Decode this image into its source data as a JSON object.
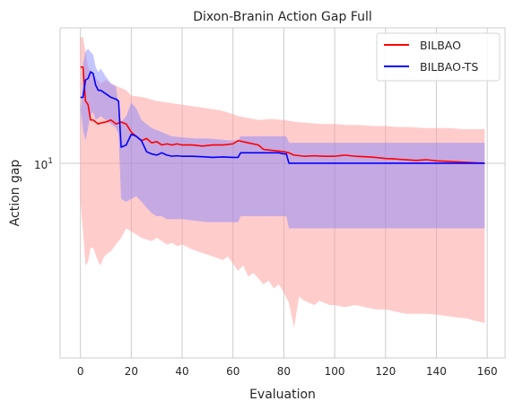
{
  "chart_data": {
    "type": "line",
    "title": "Dixon-Branin Action Gap Full",
    "xlabel": "Evaluation",
    "ylabel": "Action gap",
    "xlim": [
      -8,
      167
    ],
    "ylim": [
      4.4,
      17.7
    ],
    "yscale": "log",
    "grid": true,
    "legend_position": "top-right",
    "x_ticks": [
      0,
      20,
      40,
      60,
      80,
      100,
      120,
      140,
      160
    ],
    "y_ticks": [
      {
        "value": 10,
        "base": "10",
        "exp": "1"
      }
    ],
    "series": [
      {
        "name": "BILBAO",
        "color": "#ff0000",
        "band_color": "#ff9999",
        "points": [
          [
            0,
            15.0
          ],
          [
            1,
            15.0
          ],
          [
            2,
            13.0
          ],
          [
            3,
            12.8
          ],
          [
            4,
            12.0
          ],
          [
            5,
            12.0
          ],
          [
            6,
            11.9
          ],
          [
            7,
            11.8
          ],
          [
            8,
            11.85
          ],
          [
            10,
            11.9
          ],
          [
            12,
            12.0
          ],
          [
            14,
            11.8
          ],
          [
            16,
            11.9
          ],
          [
            18,
            11.8
          ],
          [
            20,
            11.4
          ],
          [
            22,
            11.2
          ],
          [
            24,
            11.0
          ],
          [
            26,
            11.1
          ],
          [
            28,
            10.9
          ],
          [
            30,
            10.95
          ],
          [
            32,
            10.8
          ],
          [
            34,
            10.85
          ],
          [
            36,
            10.8
          ],
          [
            38,
            10.85
          ],
          [
            40,
            10.8
          ],
          [
            44,
            10.8
          ],
          [
            48,
            10.75
          ],
          [
            52,
            10.8
          ],
          [
            56,
            10.8
          ],
          [
            60,
            10.85
          ],
          [
            62,
            11.0
          ],
          [
            66,
            10.9
          ],
          [
            70,
            10.8
          ],
          [
            72,
            10.6
          ],
          [
            76,
            10.55
          ],
          [
            80,
            10.5
          ],
          [
            82,
            10.45
          ],
          [
            84,
            10.35
          ],
          [
            88,
            10.3
          ],
          [
            92,
            10.32
          ],
          [
            96,
            10.3
          ],
          [
            100,
            10.3
          ],
          [
            104,
            10.35
          ],
          [
            108,
            10.3
          ],
          [
            112,
            10.28
          ],
          [
            116,
            10.25
          ],
          [
            120,
            10.2
          ],
          [
            124,
            10.18
          ],
          [
            128,
            10.15
          ],
          [
            132,
            10.12
          ],
          [
            136,
            10.15
          ],
          [
            140,
            10.1
          ],
          [
            144,
            10.08
          ],
          [
            150,
            10.05
          ],
          [
            155,
            10.02
          ],
          [
            159,
            10.0
          ]
        ],
        "band_upper": [
          [
            0,
            17.0
          ],
          [
            1,
            17.0
          ],
          [
            2,
            16.0
          ],
          [
            3,
            15.0
          ],
          [
            5,
            14.5
          ],
          [
            8,
            14.0
          ],
          [
            10,
            14.2
          ],
          [
            12,
            14.0
          ],
          [
            15,
            13.8
          ],
          [
            18,
            13.6
          ],
          [
            20,
            13.3
          ],
          [
            25,
            13.2
          ],
          [
            30,
            13.0
          ],
          [
            35,
            12.9
          ],
          [
            40,
            12.8
          ],
          [
            45,
            12.7
          ],
          [
            50,
            12.6
          ],
          [
            55,
            12.5
          ],
          [
            60,
            12.3
          ],
          [
            62,
            12.2
          ],
          [
            66,
            12.1
          ],
          [
            70,
            12.0
          ],
          [
            75,
            12.05
          ],
          [
            80,
            12.0
          ],
          [
            85,
            11.9
          ],
          [
            90,
            11.85
          ],
          [
            95,
            11.8
          ],
          [
            100,
            11.8
          ],
          [
            105,
            11.75
          ],
          [
            110,
            11.75
          ],
          [
            115,
            11.7
          ],
          [
            120,
            11.7
          ],
          [
            125,
            11.65
          ],
          [
            130,
            11.65
          ],
          [
            135,
            11.6
          ],
          [
            140,
            11.6
          ],
          [
            145,
            11.6
          ],
          [
            150,
            11.55
          ],
          [
            155,
            11.55
          ],
          [
            159,
            11.55
          ]
        ],
        "band_lower": [
          [
            0,
            8.5
          ],
          [
            1,
            7.5
          ],
          [
            2,
            6.5
          ],
          [
            3,
            6.6
          ],
          [
            4,
            7.0
          ],
          [
            5,
            7.0
          ],
          [
            6,
            6.8
          ],
          [
            7,
            6.6
          ],
          [
            8,
            6.5
          ],
          [
            9,
            6.7
          ],
          [
            10,
            6.8
          ],
          [
            12,
            6.9
          ],
          [
            14,
            7.1
          ],
          [
            16,
            7.3
          ],
          [
            18,
            7.6
          ],
          [
            20,
            7.5
          ],
          [
            24,
            7.3
          ],
          [
            28,
            7.2
          ],
          [
            30,
            7.3
          ],
          [
            34,
            7.1
          ],
          [
            36,
            7.15
          ],
          [
            38,
            7.05
          ],
          [
            40,
            7.1
          ],
          [
            44,
            6.95
          ],
          [
            48,
            6.85
          ],
          [
            52,
            6.75
          ],
          [
            56,
            6.65
          ],
          [
            58,
            6.75
          ],
          [
            60,
            6.55
          ],
          [
            62,
            6.35
          ],
          [
            64,
            6.5
          ],
          [
            66,
            6.2
          ],
          [
            68,
            6.3
          ],
          [
            70,
            6.15
          ],
          [
            72,
            6.0
          ],
          [
            74,
            6.1
          ],
          [
            76,
            5.9
          ],
          [
            78,
            6.0
          ],
          [
            80,
            5.8
          ],
          [
            82,
            5.55
          ],
          [
            84,
            5.0
          ],
          [
            86,
            5.7
          ],
          [
            88,
            5.6
          ],
          [
            90,
            5.55
          ],
          [
            92,
            5.5
          ],
          [
            94,
            5.6
          ],
          [
            96,
            5.55
          ],
          [
            98,
            5.5
          ],
          [
            100,
            5.5
          ],
          [
            104,
            5.45
          ],
          [
            108,
            5.5
          ],
          [
            112,
            5.45
          ],
          [
            116,
            5.4
          ],
          [
            120,
            5.4
          ],
          [
            124,
            5.35
          ],
          [
            128,
            5.3
          ],
          [
            132,
            5.3
          ],
          [
            136,
            5.3
          ],
          [
            140,
            5.28
          ],
          [
            144,
            5.25
          ],
          [
            148,
            5.22
          ],
          [
            152,
            5.2
          ],
          [
            155,
            5.15
          ],
          [
            159,
            5.1
          ]
        ]
      },
      {
        "name": "BILBAO-TS",
        "color": "#0000ff",
        "band_color": "#7f7fff",
        "points": [
          [
            0,
            13.2
          ],
          [
            1,
            13.2
          ],
          [
            2,
            14.2
          ],
          [
            3,
            14.3
          ],
          [
            4,
            14.7
          ],
          [
            5,
            14.6
          ],
          [
            6,
            13.9
          ],
          [
            7,
            13.6
          ],
          [
            8,
            13.6
          ],
          [
            10,
            13.4
          ],
          [
            12,
            13.2
          ],
          [
            14,
            13.1
          ],
          [
            15,
            13.0
          ],
          [
            16,
            10.7
          ],
          [
            18,
            10.8
          ],
          [
            20,
            11.3
          ],
          [
            22,
            11.2
          ],
          [
            24,
            11.0
          ],
          [
            26,
            10.5
          ],
          [
            28,
            10.4
          ],
          [
            30,
            10.35
          ],
          [
            32,
            10.45
          ],
          [
            34,
            10.35
          ],
          [
            36,
            10.3
          ],
          [
            38,
            10.32
          ],
          [
            40,
            10.3
          ],
          [
            44,
            10.3
          ],
          [
            48,
            10.28
          ],
          [
            52,
            10.25
          ],
          [
            56,
            10.27
          ],
          [
            60,
            10.25
          ],
          [
            62,
            10.25
          ],
          [
            63,
            10.45
          ],
          [
            66,
            10.45
          ],
          [
            70,
            10.45
          ],
          [
            74,
            10.45
          ],
          [
            78,
            10.45
          ],
          [
            80,
            10.4
          ],
          [
            81,
            10.4
          ],
          [
            82,
            10.0
          ],
          [
            86,
            10.0
          ],
          [
            100,
            10.0
          ],
          [
            120,
            10.0
          ],
          [
            140,
            10.0
          ],
          [
            159,
            10.0
          ]
        ],
        "band_upper": [
          [
            0,
            11.5
          ],
          [
            1,
            15.2
          ],
          [
            2,
            16.0
          ],
          [
            3,
            16.2
          ],
          [
            4,
            16.0
          ],
          [
            5,
            15.8
          ],
          [
            6,
            15.0
          ],
          [
            7,
            14.7
          ],
          [
            8,
            14.9
          ],
          [
            10,
            14.4
          ],
          [
            12,
            14.0
          ],
          [
            14,
            13.8
          ],
          [
            15,
            12.7
          ],
          [
            16,
            11.9
          ],
          [
            18,
            12.2
          ],
          [
            20,
            12.9
          ],
          [
            22,
            12.6
          ],
          [
            24,
            12.0
          ],
          [
            26,
            11.8
          ],
          [
            28,
            11.6
          ],
          [
            30,
            11.5
          ],
          [
            32,
            11.4
          ],
          [
            34,
            11.3
          ],
          [
            36,
            11.2
          ],
          [
            40,
            11.15
          ],
          [
            45,
            11.1
          ],
          [
            50,
            11.1
          ],
          [
            55,
            11.05
          ],
          [
            60,
            11.0
          ],
          [
            62,
            11.0
          ],
          [
            63,
            11.2
          ],
          [
            66,
            11.2
          ],
          [
            70,
            11.2
          ],
          [
            75,
            11.2
          ],
          [
            80,
            11.2
          ],
          [
            81,
            11.2
          ],
          [
            82,
            10.9
          ],
          [
            86,
            10.9
          ],
          [
            100,
            10.9
          ],
          [
            120,
            10.9
          ],
          [
            140,
            10.9
          ],
          [
            159,
            10.9
          ]
        ],
        "band_lower": [
          [
            0,
            13.0
          ],
          [
            1,
            11.5
          ],
          [
            2,
            11.0
          ],
          [
            3,
            11.6
          ],
          [
            4,
            12.3
          ],
          [
            5,
            12.4
          ],
          [
            6,
            12.0
          ],
          [
            7,
            12.1
          ],
          [
            8,
            12.2
          ],
          [
            10,
            12.0
          ],
          [
            12,
            11.8
          ],
          [
            14,
            11.6
          ],
          [
            15,
            11.3
          ],
          [
            16,
            8.6
          ],
          [
            18,
            8.5
          ],
          [
            20,
            8.6
          ],
          [
            22,
            8.7
          ],
          [
            24,
            8.5
          ],
          [
            26,
            8.3
          ],
          [
            28,
            8.1
          ],
          [
            30,
            8.0
          ],
          [
            32,
            8.0
          ],
          [
            34,
            7.9
          ],
          [
            36,
            7.9
          ],
          [
            40,
            7.9
          ],
          [
            45,
            7.85
          ],
          [
            50,
            7.8
          ],
          [
            55,
            7.8
          ],
          [
            60,
            7.8
          ],
          [
            62,
            7.8
          ],
          [
            63,
            8.0
          ],
          [
            66,
            8.0
          ],
          [
            70,
            8.0
          ],
          [
            75,
            8.0
          ],
          [
            80,
            8.0
          ],
          [
            81,
            8.0
          ],
          [
            82,
            7.6
          ],
          [
            86,
            7.6
          ],
          [
            100,
            7.6
          ],
          [
            120,
            7.6
          ],
          [
            140,
            7.6
          ],
          [
            159,
            7.6
          ]
        ]
      }
    ]
  }
}
